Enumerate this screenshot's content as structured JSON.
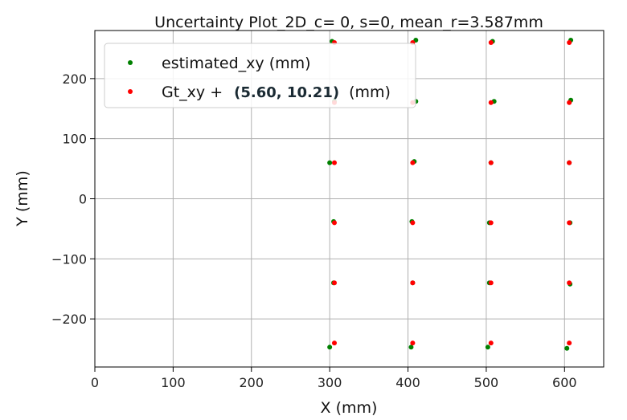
{
  "chart_data": {
    "type": "scatter",
    "title": "Uncertainty Plot_2D_c= 0, s=0, mean_r=3.587mm",
    "xlabel": "X (mm)",
    "ylabel": "Y (mm)",
    "xlim": [
      0,
      650
    ],
    "ylim": [
      -280,
      280
    ],
    "xticks": [
      0,
      100,
      200,
      300,
      400,
      500,
      600
    ],
    "yticks": [
      -200,
      -100,
      0,
      100,
      200
    ],
    "xtick_labels": [
      "0",
      "100",
      "200",
      "300",
      "400",
      "500",
      "600"
    ],
    "ytick_labels": [
      "−200",
      "−100",
      "0",
      "100",
      "200"
    ],
    "grid": true,
    "legend_position": "top-left",
    "series": [
      {
        "name": "estimated_xy (mm)",
        "color": "#008000",
        "points": [
          [
            300,
            -247
          ],
          [
            404,
            -247
          ],
          [
            502,
            -247
          ],
          [
            603,
            -249
          ],
          [
            305,
            -140
          ],
          [
            406,
            -140
          ],
          [
            504,
            -140
          ],
          [
            607,
            -142
          ],
          [
            305,
            -38
          ],
          [
            405,
            -38
          ],
          [
            504,
            -40
          ],
          [
            607,
            -40
          ],
          [
            300,
            60
          ],
          [
            408,
            62
          ],
          [
            506,
            60
          ],
          [
            606,
            60
          ],
          [
            306,
            162
          ],
          [
            410,
            162
          ],
          [
            510,
            162
          ],
          [
            608,
            164
          ],
          [
            303,
            262
          ],
          [
            410,
            264
          ],
          [
            508,
            262
          ],
          [
            608,
            264
          ]
        ]
      },
      {
        "name": "Gt_xy +",
        "color": "#ff0000",
        "points": [
          [
            306,
            -240
          ],
          [
            406,
            -240
          ],
          [
            506,
            -240
          ],
          [
            606,
            -240
          ],
          [
            306,
            -140
          ],
          [
            406,
            -140
          ],
          [
            506,
            -140
          ],
          [
            606,
            -140
          ],
          [
            306,
            -40
          ],
          [
            406,
            -40
          ],
          [
            506,
            -40
          ],
          [
            606,
            -40
          ],
          [
            306,
            60
          ],
          [
            406,
            60
          ],
          [
            506,
            60
          ],
          [
            606,
            60
          ],
          [
            306,
            160
          ],
          [
            406,
            160
          ],
          [
            506,
            160
          ],
          [
            606,
            160
          ],
          [
            306,
            260
          ],
          [
            406,
            260
          ],
          [
            506,
            260
          ],
          [
            606,
            260
          ]
        ]
      }
    ],
    "legend": {
      "entries": [
        {
          "prefix": "estimated_xy (mm)",
          "bold": "",
          "suffix": "",
          "color": "#008000"
        },
        {
          "prefix": "Gt_xy + ",
          "bold": "(5.60, 10.21)",
          "suffix": "(mm)",
          "color": "#ff0000"
        }
      ]
    }
  }
}
